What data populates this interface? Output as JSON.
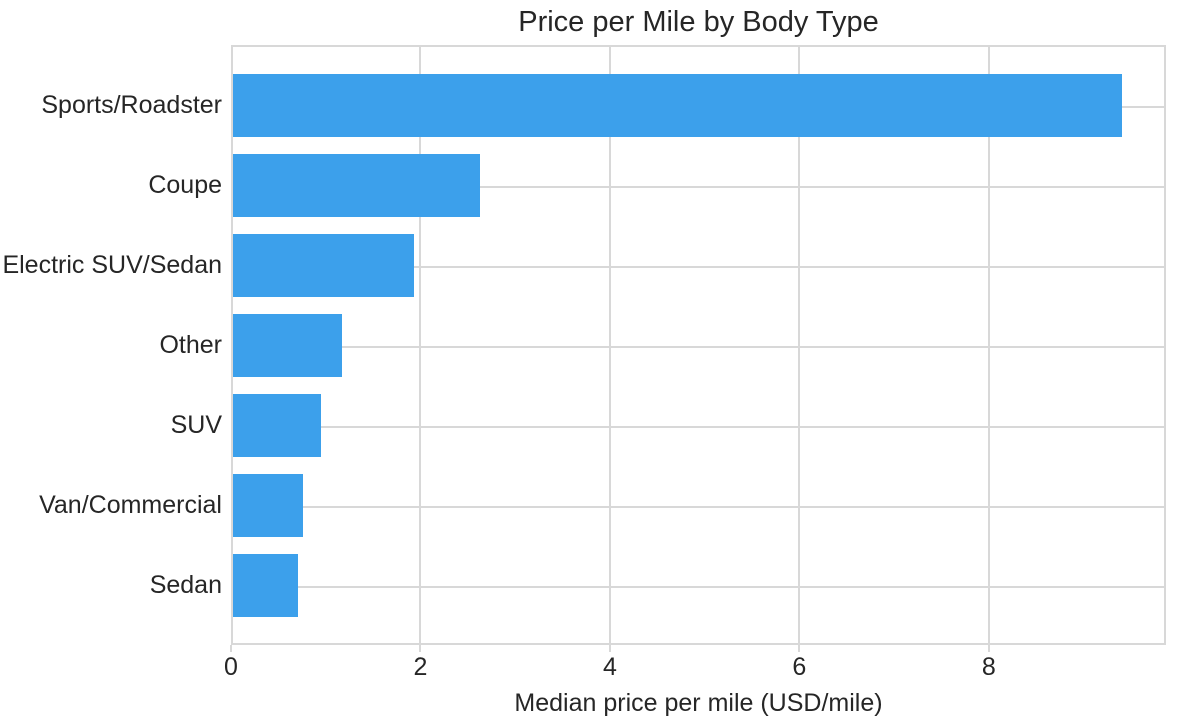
{
  "chart_data": {
    "type": "bar",
    "orientation": "horizontal",
    "title": "Price per Mile by Body Type",
    "xlabel": "Median price per mile (USD/mile)",
    "ylabel": "",
    "categories": [
      "Sports/Roadster",
      "Coupe",
      "Electric SUV/Sedan",
      "Other",
      "SUV",
      "Van/Commercial",
      "Sedan"
    ],
    "values": [
      9.38,
      2.61,
      1.91,
      1.15,
      0.93,
      0.74,
      0.69
    ],
    "xlim": [
      0,
      9.87
    ],
    "xticks": [
      0,
      2,
      4,
      6,
      8
    ],
    "xtick_labels": [
      "0",
      "2",
      "4",
      "6",
      "8"
    ],
    "grid": true,
    "legend": "none"
  },
  "style": {
    "bar_color": "#3CA0EB",
    "grid_color": "#D8D8D8",
    "spine_color": "#D8D8D8",
    "text_color": "#262626",
    "background": "#FFFFFF"
  }
}
